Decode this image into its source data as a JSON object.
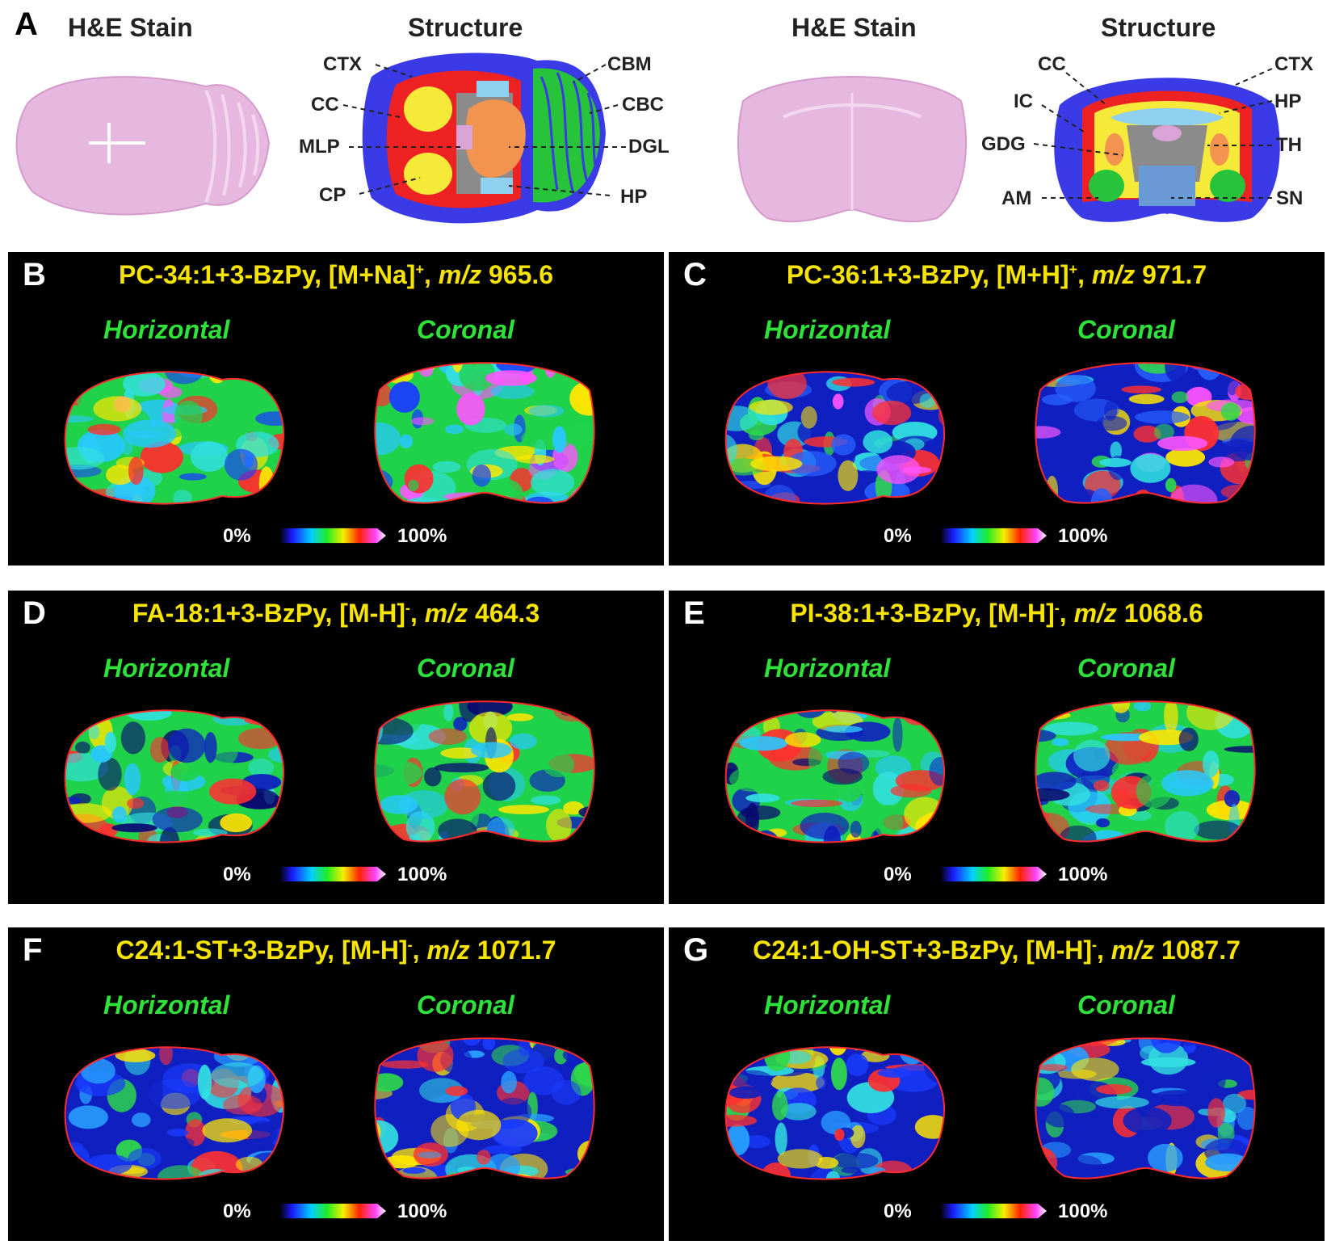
{
  "panel_a": {
    "letter": "A",
    "he_title_left": "H&E Stain",
    "structure_title_left": "Structure",
    "he_title_right": "H&E Stain",
    "structure_title_right": "Structure",
    "horizontal_labels": [
      "CTX",
      "CC",
      "MLP",
      "CP",
      "CBM",
      "CBC",
      "DGL",
      "HP"
    ],
    "coronal_labels": [
      "CC",
      "IC",
      "GDG",
      "AM",
      "CTX",
      "HP",
      "TH",
      "SN"
    ]
  },
  "panels": [
    {
      "letter": "B",
      "analyte": "PC-34:1+3-BzPy, [M+Na]",
      "charge": "+",
      "mz_label": "m/z",
      "mz": "965.6",
      "view_left": "Horizontal",
      "view_right": "Coronal",
      "scale_min": "0%",
      "scale_max": "100%"
    },
    {
      "letter": "C",
      "analyte": "PC-36:1+3-BzPy, [M+H]",
      "charge": "+",
      "mz_label": "m/z",
      "mz": "971.7",
      "view_left": "Horizontal",
      "view_right": "Coronal",
      "scale_min": "0%",
      "scale_max": "100%"
    },
    {
      "letter": "D",
      "analyte": "FA-18:1+3-BzPy, [M-H]",
      "charge": "-",
      "mz_label": "m/z",
      "mz": "464.3",
      "view_left": "Horizontal",
      "view_right": "Coronal",
      "scale_min": "0%",
      "scale_max": "100%"
    },
    {
      "letter": "E",
      "analyte": "PI-38:1+3-BzPy, [M-H]",
      "charge": "-",
      "mz_label": "m/z",
      "mz": "1068.6",
      "view_left": "Horizontal",
      "view_right": "Coronal",
      "scale_min": "0%",
      "scale_max": "100%"
    },
    {
      "letter": "F",
      "analyte": "C24:1-ST+3-BzPy, [M-H]",
      "charge": "-",
      "mz_label": "m/z",
      "mz": "1071.7",
      "view_left": "Horizontal",
      "view_right": "Coronal",
      "scale_min": "0%",
      "scale_max": "100%"
    },
    {
      "letter": "G",
      "analyte": "C24:1-OH-ST+3-BzPy, [M-H]",
      "charge": "-",
      "mz_label": "m/z",
      "mz": "1087.7",
      "view_left": "Horizontal",
      "view_right": "Coronal",
      "scale_min": "0%",
      "scale_max": "100%"
    }
  ],
  "colors": {
    "he_pink": "#e7b8df",
    "ctx": "#3a3ae6",
    "cc": "#ee2222",
    "cp": "#f5e93a",
    "dgl": "#f29350",
    "hp": "#8fd0f0",
    "cbm": "#27c43b",
    "th": "#8b8b8b",
    "label_yellow": "#f6e300",
    "label_green": "#2ee23a",
    "outline_red": "#ff2a2a"
  }
}
